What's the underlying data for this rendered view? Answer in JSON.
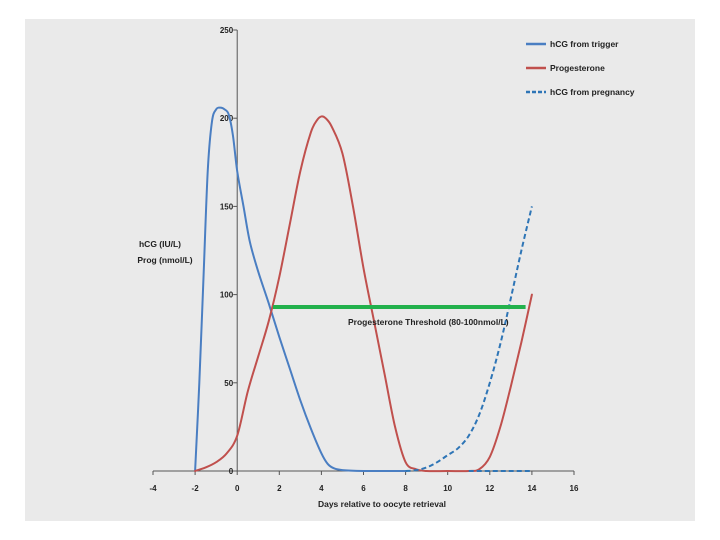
{
  "chart_data": {
    "type": "line",
    "xlabel": "Days relative to oocyte retrieval",
    "ylabel_line1": "hCG (IU/L)",
    "ylabel_line2": "Prog (nmol/L)",
    "xlim": [
      -4,
      16
    ],
    "ylim": [
      0,
      250
    ],
    "x_ticks": [
      -4,
      -2,
      0,
      2,
      4,
      6,
      8,
      10,
      12,
      14,
      16
    ],
    "y_ticks": [
      0,
      50,
      100,
      150,
      200,
      250
    ],
    "grid": false,
    "legend_position": "top-right",
    "series": [
      {
        "name": "hCG from trigger",
        "color": "#4a7ec2",
        "style": "solid",
        "x": [
          -2.0,
          -1.8,
          -1.6,
          -1.4,
          -1.2,
          -1.0,
          -0.8,
          -0.6,
          -0.4,
          -0.2,
          0.0,
          0.3,
          0.6,
          1.0,
          1.5,
          2.0,
          2.5,
          3.0,
          3.5,
          4.0,
          4.3,
          4.6,
          5.0,
          6.0,
          7.0,
          8.0
        ],
        "y": [
          0,
          50,
          110,
          170,
          198,
          205,
          206,
          205,
          202,
          190,
          170,
          150,
          130,
          113,
          95,
          76,
          58,
          40,
          24,
          10,
          4,
          1.5,
          0.5,
          0,
          0,
          0
        ]
      },
      {
        "name": "Progesterone",
        "color": "#c0504d",
        "style": "solid",
        "x": [
          -2.0,
          -1.5,
          -1.0,
          -0.5,
          0.0,
          0.5,
          1.0,
          1.5,
          2.0,
          2.5,
          3.0,
          3.5,
          3.8,
          4.0,
          4.2,
          4.5,
          5.0,
          5.5,
          6.0,
          6.5,
          7.0,
          7.5,
          8.0,
          8.5,
          9.0,
          10.0,
          11.0,
          11.5,
          12.0,
          12.5,
          13.0,
          13.5,
          14.0
        ],
        "y": [
          0,
          2,
          5,
          10,
          20,
          45,
          65,
          85,
          110,
          140,
          170,
          192,
          199,
          201,
          200,
          195,
          180,
          150,
          115,
          85,
          55,
          25,
          5,
          1,
          0,
          0,
          0,
          1,
          8,
          25,
          48,
          73,
          100
        ]
      },
      {
        "name": "hCG from pregnancy",
        "color": "#2e75b6",
        "style": "dashed",
        "x": [
          8.0,
          8.5,
          9.0,
          9.5,
          10.0,
          10.5,
          11.0,
          11.5,
          12.0,
          12.5,
          13.0,
          13.5,
          14.0
        ],
        "y": [
          0,
          0.5,
          2,
          5,
          9,
          13,
          20,
          32,
          50,
          72,
          98,
          125,
          150
        ]
      },
      {
        "name": "hCG from trigger tail",
        "color": "#2e75b6",
        "style": "dashed",
        "x": [
          11.0,
          12.0,
          13.0,
          14.0
        ],
        "y": [
          0,
          0,
          0,
          0
        ]
      }
    ],
    "annotations": [
      {
        "text": "Progesterone Threshold (80-100nmol/L)",
        "type": "horizontal-line",
        "color": "#22b14c",
        "x_start": 1.7,
        "x_end": 13.7,
        "y": 93
      }
    ]
  }
}
